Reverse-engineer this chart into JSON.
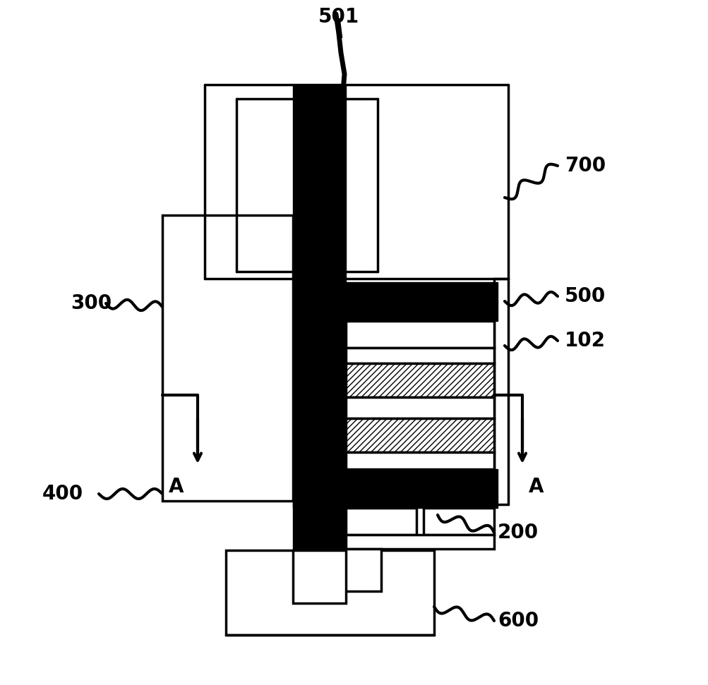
{
  "bg_color": "#ffffff",
  "line_color": "#000000",
  "fig_width": 10.04,
  "fig_height": 9.71,
  "dpi": 100
}
